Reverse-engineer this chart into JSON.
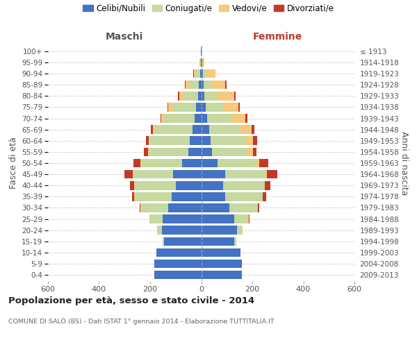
{
  "age_groups": [
    "0-4",
    "5-9",
    "10-14",
    "15-19",
    "20-24",
    "25-29",
    "30-34",
    "35-39",
    "40-44",
    "45-49",
    "50-54",
    "55-59",
    "60-64",
    "65-69",
    "70-74",
    "75-79",
    "80-84",
    "85-89",
    "90-94",
    "95-99",
    "100+"
  ],
  "birth_years": [
    "2009-2013",
    "2004-2008",
    "1999-2003",
    "1994-1998",
    "1989-1993",
    "1984-1988",
    "1979-1983",
    "1974-1978",
    "1969-1973",
    "1964-1968",
    "1959-1963",
    "1954-1958",
    "1949-1953",
    "1944-1948",
    "1939-1943",
    "1934-1938",
    "1929-1933",
    "1924-1928",
    "1919-1923",
    "1914-1918",
    "≤ 1913"
  ],
  "male_celibi": [
    185,
    185,
    175,
    145,
    155,
    150,
    130,
    115,
    100,
    110,
    75,
    50,
    45,
    35,
    25,
    20,
    12,
    10,
    5,
    2,
    2
  ],
  "male_coniugati": [
    0,
    0,
    0,
    5,
    15,
    50,
    105,
    145,
    160,
    155,
    160,
    155,
    155,
    145,
    120,
    90,
    55,
    35,
    15,
    3,
    0
  ],
  "male_vedovi": [
    0,
    0,
    0,
    0,
    2,
    2,
    2,
    2,
    2,
    2,
    2,
    4,
    5,
    8,
    12,
    18,
    20,
    15,
    8,
    2,
    0
  ],
  "male_divorziati": [
    0,
    0,
    0,
    0,
    0,
    2,
    5,
    10,
    18,
    35,
    28,
    15,
    12,
    8,
    3,
    3,
    3,
    3,
    2,
    0,
    0
  ],
  "fem_nubili": [
    160,
    160,
    155,
    130,
    140,
    130,
    110,
    95,
    85,
    95,
    65,
    42,
    38,
    32,
    22,
    18,
    12,
    10,
    8,
    3,
    2
  ],
  "fem_coniugate": [
    0,
    0,
    0,
    8,
    20,
    55,
    110,
    145,
    160,
    155,
    150,
    140,
    135,
    120,
    95,
    68,
    48,
    30,
    12,
    2,
    0
  ],
  "fem_vedove": [
    0,
    0,
    0,
    0,
    2,
    2,
    2,
    2,
    5,
    8,
    12,
    20,
    30,
    45,
    55,
    60,
    70,
    55,
    35,
    8,
    0
  ],
  "fem_divorziate": [
    0,
    0,
    0,
    0,
    0,
    2,
    5,
    12,
    20,
    40,
    35,
    15,
    15,
    10,
    8,
    5,
    5,
    5,
    2,
    0,
    0
  ],
  "color_celibi": "#4472c4",
  "color_coniugati": "#c5d9a0",
  "color_vedovi": "#f5c97e",
  "color_divorziati": "#c0392b",
  "title": "Popolazione per età, sesso e stato civile - 2014",
  "subtitle": "COMUNE DI SALÒ (BS) - Dati ISTAT 1° gennaio 2014 - Elaborazione TUTTITALIA.IT",
  "label_maschi": "Maschi",
  "label_femmine": "Femmine",
  "ylabel_left": "Fasce di età",
  "ylabel_right": "Anni di nascita",
  "xlim": 600,
  "legend_labels": [
    "Celibi/Nubili",
    "Coniugati/e",
    "Vedovi/e",
    "Divorziati/e"
  ],
  "bg_color": "#ffffff",
  "grid_color": "#cccccc"
}
